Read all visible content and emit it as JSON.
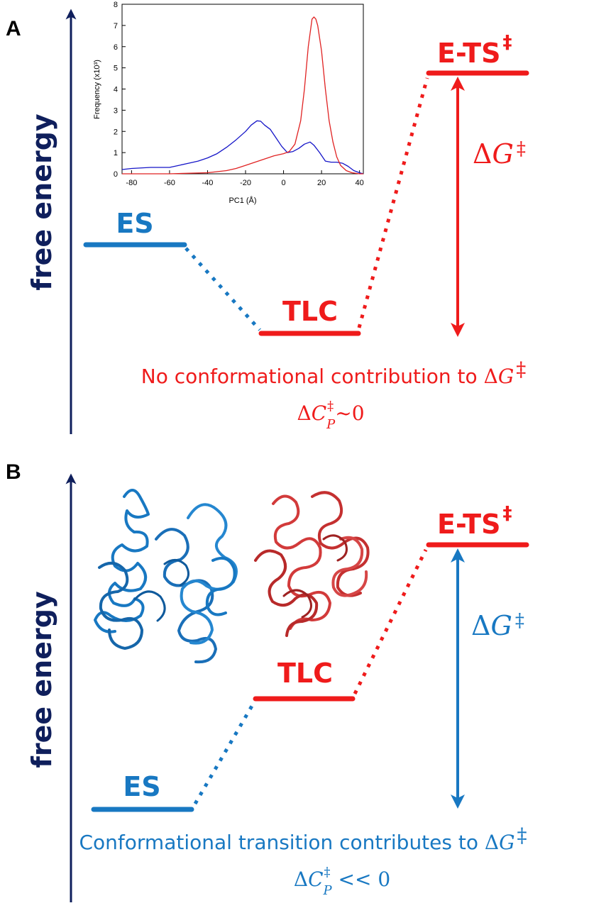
{
  "colors": {
    "navy": "#0f1f5c",
    "red": "#ef1b1b",
    "blue": "#1878c2",
    "inset_blue": "#1515c8",
    "inset_red": "#e02222"
  },
  "panel_a": {
    "letter": "A",
    "y_axis_label": "free energy",
    "states": {
      "es": "ES",
      "tlc": "TLC",
      "ets": "E-TS",
      "ets_sup": "‡"
    },
    "delta_g": {
      "delta": "Δ",
      "g": "G",
      "dagger": "‡"
    },
    "caption_line1_text": "No conformational contribution to ",
    "caption_line2": {
      "delta": "Δ",
      "c": "C",
      "sup": "‡",
      "sub": "P",
      "rest": "~0"
    }
  },
  "panel_b": {
    "letter": "B",
    "y_axis_label": "free energy",
    "states": {
      "es": "ES",
      "tlc": "TLC",
      "ets": "E-TS",
      "ets_sup": "‡"
    },
    "delta_g": {
      "delta": "Δ",
      "g": "G",
      "dagger": "‡"
    },
    "caption_line1_text": "Conformational transition contributes to ",
    "caption_line2": {
      "delta": "Δ",
      "c": "C",
      "sup": "‡",
      "sub": "P",
      "rest": " << 0"
    },
    "structure_icons": [
      "protein-ribbon-blue-icon",
      "protein-ribbon-red-icon"
    ]
  },
  "chart_data": {
    "type": "line",
    "xlabel": "PC1 (Å)",
    "ylabel": "Frequency (x10³)",
    "xlim": [
      -85,
      42
    ],
    "ylim": [
      0,
      8
    ],
    "xticks": [
      -80,
      -60,
      -40,
      -20,
      0,
      20,
      40
    ],
    "yticks": [
      0,
      1,
      2,
      3,
      4,
      5,
      6,
      7,
      8
    ],
    "series": [
      {
        "color": "#1515c8",
        "x": [
          -85,
          -80,
          -70,
          -60,
          -55,
          -50,
          -45,
          -40,
          -35,
          -30,
          -25,
          -20,
          -17,
          -14,
          -12,
          -10,
          -7,
          -4,
          -1,
          2,
          5,
          8,
          11,
          14,
          16,
          19,
          22,
          25,
          28,
          31,
          34,
          37,
          40,
          42
        ],
        "y": [
          0.2,
          0.25,
          0.3,
          0.3,
          0.4,
          0.5,
          0.6,
          0.75,
          0.95,
          1.25,
          1.6,
          2.0,
          2.3,
          2.5,
          2.48,
          2.3,
          2.1,
          1.7,
          1.3,
          1.0,
          1.05,
          1.2,
          1.4,
          1.5,
          1.35,
          1.0,
          0.6,
          0.55,
          0.55,
          0.5,
          0.35,
          0.15,
          0.05,
          0.0
        ]
      },
      {
        "color": "#e02222",
        "x": [
          -85,
          -60,
          -40,
          -30,
          -25,
          -20,
          -15,
          -10,
          -5,
          0,
          3,
          6,
          9,
          11,
          13,
          15,
          16,
          17,
          18,
          20,
          22,
          24,
          26,
          28,
          30,
          33,
          36,
          40,
          42
        ],
        "y": [
          0.0,
          0.0,
          0.05,
          0.15,
          0.25,
          0.4,
          0.55,
          0.7,
          0.85,
          0.95,
          1.05,
          1.4,
          2.5,
          4.0,
          6.0,
          7.3,
          7.4,
          7.3,
          7.0,
          5.8,
          4.0,
          2.5,
          1.5,
          0.8,
          0.4,
          0.15,
          0.05,
          0.0,
          0.0
        ]
      }
    ]
  }
}
